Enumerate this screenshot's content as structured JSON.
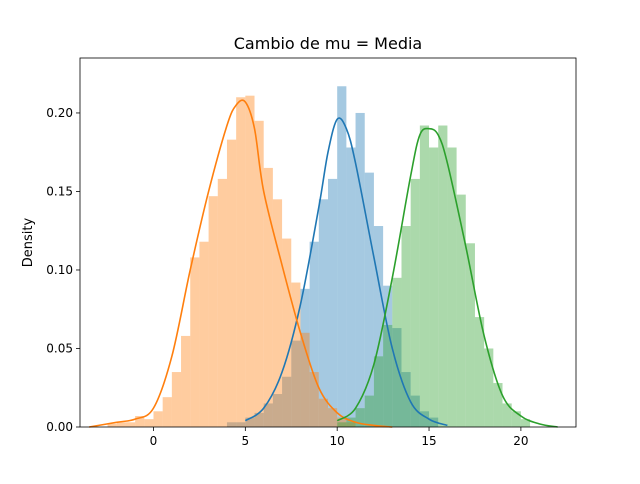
{
  "chart_data": {
    "type": "histogram_with_kde",
    "title": "Cambio de mu = Media",
    "xlabel": "",
    "ylabel": "Density",
    "xlim": [
      -4.0,
      23.0
    ],
    "ylim": [
      0.0,
      0.235
    ],
    "xticks": [
      0,
      5,
      10,
      15,
      20
    ],
    "xtick_labels": [
      "0",
      "5",
      "10",
      "15",
      "20"
    ],
    "yticks": [
      0.0,
      0.05,
      0.1,
      0.15,
      0.2
    ],
    "ytick_labels": [
      "0.00",
      "0.05",
      "0.10",
      "0.15",
      "0.20"
    ],
    "grid": false,
    "legend": false,
    "series": [
      {
        "color": "#1f77b4",
        "bin_width": 0.5,
        "bins": [
          {
            "x0": 4.0,
            "h": 0.003
          },
          {
            "x0": 4.5,
            "h": 0.003
          },
          {
            "x0": 5.0,
            "h": 0.006
          },
          {
            "x0": 5.5,
            "h": 0.009
          },
          {
            "x0": 6.0,
            "h": 0.015
          },
          {
            "x0": 6.5,
            "h": 0.021
          },
          {
            "x0": 7.0,
            "h": 0.032
          },
          {
            "x0": 7.5,
            "h": 0.055
          },
          {
            "x0": 8.0,
            "h": 0.088
          },
          {
            "x0": 8.5,
            "h": 0.118
          },
          {
            "x0": 9.0,
            "h": 0.145
          },
          {
            "x0": 9.5,
            "h": 0.158
          },
          {
            "x0": 10.0,
            "h": 0.217
          },
          {
            "x0": 10.5,
            "h": 0.178
          },
          {
            "x0": 11.0,
            "h": 0.2
          },
          {
            "x0": 11.5,
            "h": 0.162
          },
          {
            "x0": 12.0,
            "h": 0.128
          },
          {
            "x0": 12.5,
            "h": 0.09
          },
          {
            "x0": 13.0,
            "h": 0.063
          },
          {
            "x0": 13.5,
            "h": 0.035
          },
          {
            "x0": 14.0,
            "h": 0.02
          },
          {
            "x0": 14.5,
            "h": 0.01
          },
          {
            "x0": 15.0,
            "h": 0.006
          }
        ],
        "kde_x": [
          5,
          6,
          7,
          8,
          9,
          9.5,
          10,
          10.5,
          11,
          12,
          13,
          14,
          15,
          16
        ],
        "kde_y": [
          0.004,
          0.012,
          0.035,
          0.078,
          0.14,
          0.175,
          0.196,
          0.19,
          0.168,
          0.108,
          0.05,
          0.016,
          0.005,
          0.001
        ]
      },
      {
        "color": "#ff7f0e",
        "bin_width": 0.5,
        "bins": [
          {
            "x0": -2.5,
            "h": 0.002
          },
          {
            "x0": -2.0,
            "h": 0.003
          },
          {
            "x0": -1.5,
            "h": 0.003
          },
          {
            "x0": -1.0,
            "h": 0.007
          },
          {
            "x0": -0.5,
            "h": 0.005
          },
          {
            "x0": 0.0,
            "h": 0.01
          },
          {
            "x0": 0.5,
            "h": 0.019
          },
          {
            "x0": 1.0,
            "h": 0.035
          },
          {
            "x0": 1.5,
            "h": 0.058
          },
          {
            "x0": 2.0,
            "h": 0.108
          },
          {
            "x0": 2.5,
            "h": 0.118
          },
          {
            "x0": 3.0,
            "h": 0.147
          },
          {
            "x0": 3.5,
            "h": 0.158
          },
          {
            "x0": 4.0,
            "h": 0.183
          },
          {
            "x0": 4.5,
            "h": 0.21
          },
          {
            "x0": 5.0,
            "h": 0.211
          },
          {
            "x0": 5.5,
            "h": 0.195
          },
          {
            "x0": 6.0,
            "h": 0.165
          },
          {
            "x0": 6.5,
            "h": 0.145
          },
          {
            "x0": 7.0,
            "h": 0.12
          },
          {
            "x0": 7.5,
            "h": 0.092
          },
          {
            "x0": 8.0,
            "h": 0.06
          },
          {
            "x0": 8.5,
            "h": 0.035
          },
          {
            "x0": 9.0,
            "h": 0.018
          },
          {
            "x0": 9.5,
            "h": 0.012
          },
          {
            "x0": 10.0,
            "h": 0.006
          },
          {
            "x0": 10.5,
            "h": 0.003
          }
        ],
        "kde_x": [
          -3.5,
          -2,
          -1,
          0,
          1,
          2,
          3,
          4,
          4.5,
          5,
          5.5,
          6,
          7,
          8,
          9,
          10,
          11,
          12,
          13
        ],
        "kde_y": [
          0.0,
          0.003,
          0.005,
          0.012,
          0.045,
          0.1,
          0.15,
          0.192,
          0.205,
          0.207,
          0.19,
          0.15,
          0.103,
          0.06,
          0.025,
          0.009,
          0.003,
          0.001,
          0.0
        ]
      },
      {
        "color": "#2ca02c",
        "bin_width": 0.5,
        "bins": [
          {
            "x0": 10.0,
            "h": 0.003
          },
          {
            "x0": 10.5,
            "h": 0.006
          },
          {
            "x0": 11.0,
            "h": 0.012
          },
          {
            "x0": 11.5,
            "h": 0.02
          },
          {
            "x0": 12.0,
            "h": 0.045
          },
          {
            "x0": 12.5,
            "h": 0.065
          },
          {
            "x0": 13.0,
            "h": 0.095
          },
          {
            "x0": 13.5,
            "h": 0.128
          },
          {
            "x0": 14.0,
            "h": 0.158
          },
          {
            "x0": 14.5,
            "h": 0.192
          },
          {
            "x0": 15.0,
            "h": 0.178
          },
          {
            "x0": 15.5,
            "h": 0.192
          },
          {
            "x0": 16.0,
            "h": 0.178
          },
          {
            "x0": 16.5,
            "h": 0.148
          },
          {
            "x0": 17.0,
            "h": 0.117
          },
          {
            "x0": 17.5,
            "h": 0.07
          },
          {
            "x0": 18.0,
            "h": 0.05
          },
          {
            "x0": 18.5,
            "h": 0.028
          },
          {
            "x0": 19.0,
            "h": 0.015
          },
          {
            "x0": 19.5,
            "h": 0.01
          },
          {
            "x0": 20.0,
            "h": 0.005
          }
        ],
        "kde_x": [
          10,
          11,
          12,
          13,
          14,
          14.5,
          15,
          15.5,
          16,
          17,
          18,
          19,
          20,
          21,
          22
        ],
        "kde_y": [
          0.004,
          0.012,
          0.04,
          0.095,
          0.16,
          0.186,
          0.19,
          0.186,
          0.168,
          0.115,
          0.058,
          0.02,
          0.007,
          0.002,
          0.0
        ]
      }
    ]
  }
}
